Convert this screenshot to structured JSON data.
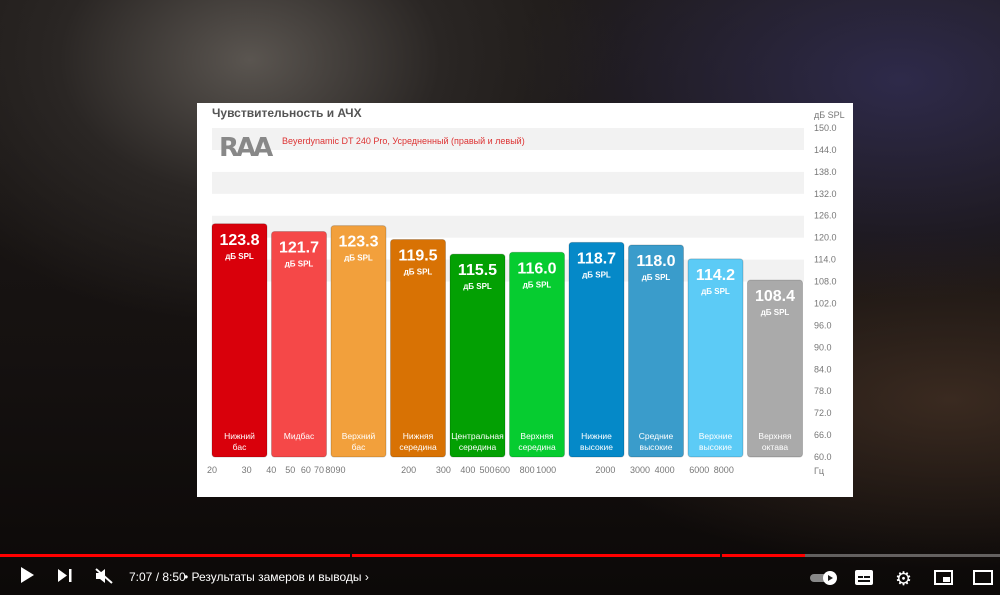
{
  "chart_data": {
    "type": "bar",
    "title": "Чувствительность и АЧХ",
    "subtitle": "Beyerdynamic DT 240 Pro, Усредненный (правый и левый)",
    "logo_text": "RAA",
    "ylabel": "дБ SPL",
    "xlabel": "Гц",
    "ylim": [
      60,
      150
    ],
    "y_ticks": [
      "150.0",
      "144.0",
      "138.0",
      "132.0",
      "126.0",
      "120.0",
      "114.0",
      "108.0",
      "102.0",
      "96.0",
      "90.0",
      "84.0",
      "78.0",
      "72.0",
      "66.0",
      "60.0"
    ],
    "x_scale": "log",
    "x_ticks": [
      "20",
      "30",
      "40",
      "50",
      "60",
      "70",
      "80",
      "90",
      "200",
      "300",
      "400",
      "500",
      "600",
      "800",
      "1000",
      "2000",
      "3000",
      "4000",
      "6000",
      "8000"
    ],
    "unit_label": "дБ SPL",
    "bars": [
      {
        "category": "Нижний бас",
        "value_label": "123.8",
        "value": 123.8,
        "color": "#d9000b"
      },
      {
        "category": "Мидбас",
        "value_label": "121.7",
        "value": 121.7,
        "color": "#f54848"
      },
      {
        "category": "Верхний бас",
        "value_label": "123.3",
        "value": 123.3,
        "color": "#f2a03c"
      },
      {
        "category": "Нижняя середина",
        "value_label": "119.5",
        "value": 119.5,
        "color": "#d87204"
      },
      {
        "category": "Центральная середина",
        "value_label": "115.5",
        "value": 115.5,
        "color": "#03a003"
      },
      {
        "category": "Верхняя середина",
        "value_label": "116.0",
        "value": 116.0,
        "color": "#06cc30"
      },
      {
        "category": "Нижние высокие",
        "value_label": "118.7",
        "value": 118.7,
        "color": "#0589c8"
      },
      {
        "category": "Средние высокие",
        "value_label": "118.0",
        "value": 118.0,
        "color": "#3a9ccb"
      },
      {
        "category": "Верхние высокие",
        "value_label": "114.2",
        "value": 114.2,
        "color": "#5ccbf6"
      },
      {
        "category": "Верхняя октава",
        "value_label": "108.4",
        "value": 108.4,
        "color": "#aaaaaa"
      }
    ]
  },
  "player": {
    "time": "7:07 / 8:50",
    "progress": 0.805,
    "chapter": "Результаты замеров и выводы",
    "accent": "#ff0000",
    "icons": [
      "play-icon",
      "next-icon",
      "mute-icon",
      "autoplay-toggle-icon",
      "subtitles-icon",
      "settings-icon",
      "miniplayer-icon",
      "theater-icon"
    ]
  }
}
